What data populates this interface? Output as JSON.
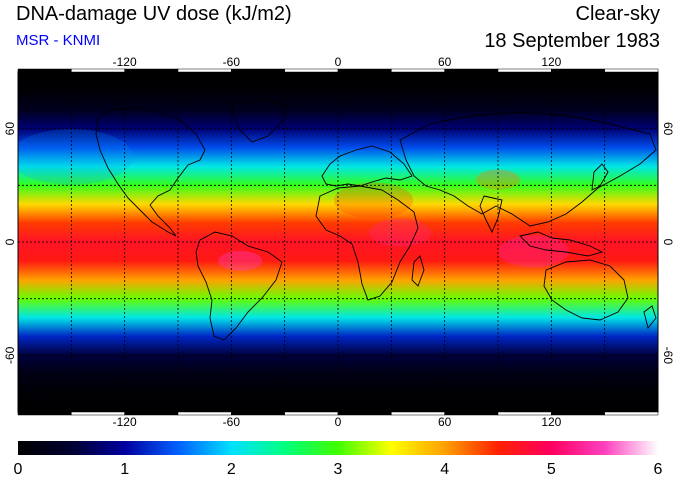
{
  "header": {
    "title": "DNA-damage UV dose (kJ/m2)",
    "subtitle": "MSR - KNMI",
    "sky_condition": "Clear-sky",
    "date": "18 September 1983"
  },
  "colors": {
    "subtitle": "#0000ff",
    "colorbar_stops": [
      "#000000",
      "#000030",
      "#0000a0",
      "#0060ff",
      "#00e0ff",
      "#00ff80",
      "#40ff00",
      "#ffff00",
      "#ffa000",
      "#ff2000",
      "#ff0060",
      "#ff40c0",
      "#ffffff"
    ]
  },
  "map": {
    "lon_range": [
      -180,
      180
    ],
    "lat_range": [
      -90,
      90
    ],
    "lon_ticks": [
      "-120",
      "-60",
      "0",
      "60",
      "120"
    ],
    "lat_ticks": [
      "60",
      "0",
      "-60"
    ],
    "gridlines": "dotted",
    "coastlines": "visible"
  },
  "colorbar": {
    "min": 0,
    "max": 6,
    "tick_labels": [
      "0",
      "1",
      "2",
      "3",
      "4",
      "5",
      "6"
    ]
  },
  "chart_data": {
    "type": "heatmap",
    "title": "DNA-damage UV dose (kJ/m2)",
    "units": "kJ/m2",
    "xlabel": "",
    "ylabel": "",
    "xlim": [
      -180,
      180
    ],
    "ylim": [
      -90,
      90
    ],
    "latitudes": [
      90,
      80,
      70,
      60,
      50,
      40,
      30,
      20,
      10,
      0,
      -10,
      -20,
      -30,
      -40,
      -50,
      -60,
      -70,
      -80,
      -90
    ],
    "zonal_mean_dose": [
      0,
      0.05,
      0.3,
      0.8,
      1.4,
      2.1,
      2.9,
      3.7,
      4.4,
      4.7,
      4.6,
      4.0,
      3.1,
      2.1,
      1.2,
      0.55,
      0.2,
      0.05,
      0
    ],
    "grid": true,
    "legend": "colorbar bottom"
  }
}
